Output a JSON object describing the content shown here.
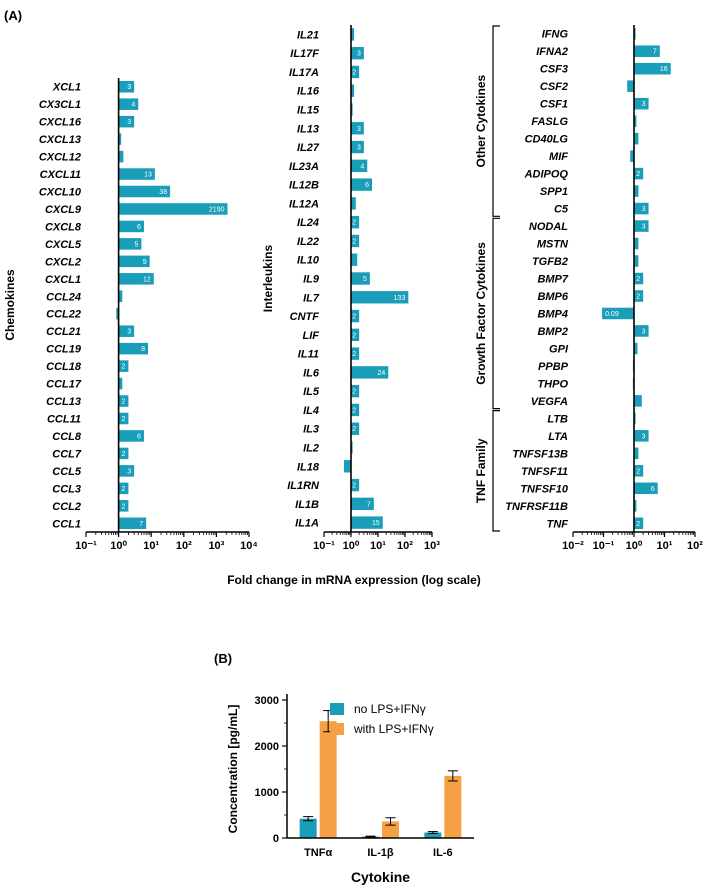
{
  "panel_a": {
    "label": "(A)",
    "xlabel": "Fold change in  mRNA expression (log scale)",
    "bar_color": "#1a9db8"
  },
  "panel_b": {
    "label": "(B)"
  },
  "chart_data": [
    {
      "type": "bar",
      "orientation": "horizontal",
      "xscale": "log10",
      "xlim_exp": [
        -1,
        4
      ],
      "tick_labels": [
        "10⁻¹",
        "10⁰",
        "10¹",
        "10²",
        "10³",
        "10⁴"
      ],
      "ylabel": "Chemokines",
      "categories": [
        "XCL1",
        "CX3CL1",
        "CXCL16",
        "CXCL13",
        "CXCL12",
        "CXCL11",
        "CXCL10",
        "CXCL9",
        "CXCL8",
        "CXCL5",
        "CXCL2",
        "CXCL1",
        "CCL24",
        "CCL22",
        "CCL21",
        "CCL19",
        "CCL18",
        "CCL17",
        "CCL13",
        "CCL11",
        "CCL8",
        "CCL7",
        "CCL5",
        "CCL3",
        "CCL2",
        "CCL1"
      ],
      "values": [
        3,
        4,
        3,
        1.2,
        1.4,
        13,
        38,
        2190,
        6,
        5,
        9,
        12,
        1.3,
        0.85,
        3,
        8,
        2,
        1.3,
        2,
        2,
        6,
        2,
        3,
        2,
        2,
        7
      ],
      "data_labels": [
        "3",
        "4",
        "3",
        "",
        "",
        "13",
        "38",
        "2190",
        "6",
        "5",
        "9",
        "12",
        "",
        "",
        "3",
        "8",
        "2",
        "",
        "2",
        "2",
        "6",
        "2",
        "3",
        "2",
        "2",
        "7"
      ]
    },
    {
      "type": "bar",
      "orientation": "horizontal",
      "xscale": "log10",
      "xlim_exp": [
        -1,
        3
      ],
      "tick_labels": [
        "10⁻¹",
        "10⁰",
        "10¹",
        "10²",
        "10³"
      ],
      "ylabel": "Interleukins",
      "categories": [
        "IL21",
        "IL17F",
        "IL17A",
        "IL16",
        "IL15",
        "IL13",
        "IL27",
        "IL23A",
        "IL12B",
        "IL12A",
        "IL24",
        "IL22",
        "IL10",
        "IL9",
        "IL7",
        "CNTF",
        "LIF",
        "IL11",
        "IL6",
        "IL5",
        "IL4",
        "IL3",
        "IL2",
        "IL18",
        "IL1RN",
        "IL1B",
        "IL1A"
      ],
      "values": [
        1.3,
        3,
        2,
        1.3,
        1,
        3,
        3,
        4,
        6,
        1.5,
        2,
        2,
        1.7,
        5,
        133,
        2,
        2,
        2,
        24,
        2,
        2,
        2,
        1,
        0.55,
        2,
        7,
        15
      ],
      "data_labels": [
        "",
        "3",
        "2",
        "",
        "",
        "3",
        "3",
        "4",
        "6",
        "",
        "2",
        "2",
        "",
        "5",
        "133",
        "2",
        "2",
        "2",
        "24",
        "2",
        "2",
        "2",
        "",
        "",
        "2",
        "7",
        "15"
      ]
    },
    {
      "type": "bar",
      "orientation": "horizontal",
      "xscale": "log10",
      "xlim_exp": [
        -2,
        2
      ],
      "tick_labels": [
        "10⁻²",
        "10⁻¹",
        "10⁰",
        "10¹",
        "10²"
      ],
      "groups": [
        {
          "name": "Other Cytokines",
          "start": 0,
          "end": 10
        },
        {
          "name": "Growth  Factor Cytokines",
          "start": 11,
          "end": 21
        },
        {
          "name": "TNF Family",
          "start": 22,
          "end": 28
        }
      ],
      "categories": [
        "IFNG",
        "IFNA2",
        "CSF3",
        "CSF2",
        "CSF1",
        "FASLG",
        "CD40LG",
        "MIF",
        "ADIPOQ",
        "SPP1",
        "C5",
        "NODAL",
        "MSTN",
        "TGFB2",
        "BMP7",
        "BMP6",
        "BMP4",
        "BMP2",
        "GPI",
        "PPBP",
        "THPO",
        "VEGFA",
        "LTB",
        "LTA",
        "TNFSF13B",
        "TNFSF11",
        "TNFSF10",
        "TNFRSF11B",
        "TNF"
      ],
      "values": [
        1,
        7,
        16,
        0.6,
        3,
        1.2,
        1.4,
        0.75,
        2,
        1.4,
        3,
        3,
        1.4,
        1.4,
        2,
        2,
        0.09,
        3,
        1.3,
        0.92,
        0.92,
        1.8,
        1.1,
        3,
        1.4,
        2,
        6,
        1.2,
        2
      ],
      "data_labels": [
        "",
        "7",
        "16",
        "",
        "3",
        "",
        "",
        "",
        "2",
        "",
        "3",
        "3",
        "",
        "",
        "2",
        "2",
        "0.09",
        "3",
        "",
        "",
        "",
        "",
        "",
        "3",
        "",
        "2",
        "6",
        "",
        "2"
      ]
    },
    {
      "type": "bar",
      "title": "",
      "xlabel": "Cytokine",
      "ylabel": "Concentration [pg/mL]",
      "ylim": [
        0,
        3000
      ],
      "yticks": [
        "0",
        "1000",
        "2000",
        "3000"
      ],
      "categories": [
        "TNFα",
        "IL-1β",
        "IL-6"
      ],
      "series": [
        {
          "name": "no LPS+IFNγ",
          "color": "#1a9db8",
          "values": [
            420,
            30,
            120
          ],
          "errors": [
            45,
            10,
            20
          ]
        },
        {
          "name": "with LPS+IFNγ",
          "color": "#f5a044",
          "values": [
            2540,
            360,
            1350
          ],
          "errors": [
            230,
            80,
            110
          ]
        }
      ],
      "legend": "top-right"
    }
  ]
}
